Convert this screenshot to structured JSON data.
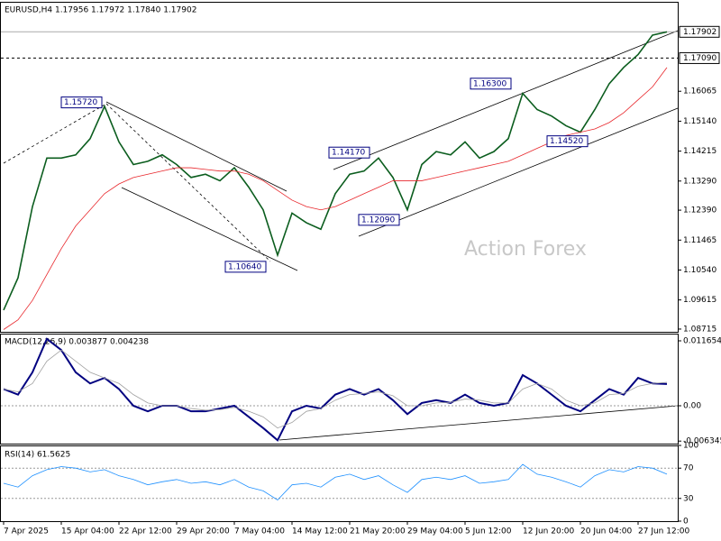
{
  "chart_data": [
    {
      "type": "line",
      "title": "EURUSD,H4  1.17956 1.17972 1.17840 1.17902",
      "watermark": "Action Forex",
      "ylim": [
        1.0863,
        1.1883
      ],
      "yticks": [
        1.16065,
        {
          "value": 1.1514,
          "label": "1.15140"
        },
        1.14215,
        {
          "value": 1.1329,
          "label": "1.13290"
        },
        {
          "value": 1.1239,
          "label": "1.12390"
        },
        1.11465,
        {
          "value": 1.1054,
          "label": "1.10540"
        },
        1.09615,
        1.08715
      ],
      "price_lines": [
        {
          "value": 1.17902,
          "label": "1.17902"
        },
        {
          "value": 1.1709,
          "label": "1.17090"
        }
      ],
      "annotations": [
        {
          "value": 1.1572,
          "label": "1.15720"
        },
        {
          "value": 1.1064,
          "label": "1.10640"
        },
        {
          "value": 1.1417,
          "label": "1.14170"
        },
        {
          "value": 1.1209,
          "label": "1.12090"
        },
        {
          "value": 1.163,
          "label": "1.16300"
        },
        {
          "value": 1.1452,
          "label": "1.14520"
        }
      ],
      "series": [
        {
          "name": "EURUSD",
          "color": "#0b5d1e",
          "values": [
            1.093,
            1.103,
            1.125,
            1.14,
            1.14,
            1.141,
            1.146,
            1.156,
            1.145,
            1.138,
            1.139,
            1.141,
            1.138,
            1.134,
            1.135,
            1.133,
            1.137,
            1.131,
            1.124,
            1.11,
            1.123,
            1.12,
            1.118,
            1.129,
            1.135,
            1.136,
            1.14,
            1.134,
            1.124,
            1.138,
            1.142,
            1.141,
            1.145,
            1.14,
            1.142,
            1.146,
            1.16,
            1.155,
            1.153,
            1.15,
            1.148,
            1.155,
            1.163,
            1.168,
            1.172,
            1.178,
            1.179
          ]
        },
        {
          "name": "MA",
          "color": "#e8262b",
          "values": [
            1.087,
            1.09,
            1.096,
            1.104,
            1.112,
            1.119,
            1.124,
            1.129,
            1.132,
            1.134,
            1.135,
            1.136,
            1.137,
            1.137,
            1.1365,
            1.136,
            1.136,
            1.135,
            1.133,
            1.13,
            1.127,
            1.125,
            1.124,
            1.125,
            1.127,
            1.129,
            1.131,
            1.133,
            1.133,
            1.133,
            1.134,
            1.135,
            1.136,
            1.137,
            1.138,
            1.139,
            1.141,
            1.143,
            1.145,
            1.147,
            1.148,
            1.149,
            1.151,
            1.154,
            1.158,
            1.162,
            1.168
          ]
        }
      ]
    },
    {
      "type": "line",
      "title": "MACD(12,26,9) 0.003877 0.004238",
      "ylim": [
        -0.0068,
        0.01295
      ],
      "yticks": [
        0.011654,
        {
          "value": 0,
          "label": "0.00"
        },
        -0.006345
      ],
      "series": [
        {
          "name": "MACD",
          "color": "#000080",
          "values": [
            0.003,
            0.002,
            0.006,
            0.012,
            0.01,
            0.006,
            0.004,
            0.005,
            0.003,
            0,
            -0.001,
            0,
            0,
            -0.001,
            -0.001,
            -0.0005,
            0,
            -0.002,
            -0.004,
            -0.0062,
            -0.001,
            0,
            -0.0005,
            0.002,
            0.003,
            0.002,
            0.003,
            0.001,
            -0.0015,
            0.0005,
            0.001,
            0.0005,
            0.002,
            0.0005,
            0,
            0.0005,
            0.0055,
            0.004,
            0.002,
            0,
            -0.001,
            0.001,
            0.003,
            0.002,
            0.005,
            0.004,
            0.0039
          ]
        },
        {
          "name": "Signal",
          "color": "#a0a0a0",
          "values": [
            0.003,
            0.0025,
            0.004,
            0.008,
            0.01,
            0.008,
            0.006,
            0.005,
            0.004,
            0.002,
            0.0005,
            0,
            0,
            -0.0005,
            -0.0008,
            -0.0007,
            -0.0003,
            -0.001,
            -0.002,
            -0.004,
            -0.003,
            -0.001,
            -0.0005,
            0.001,
            0.002,
            0.0022,
            0.0025,
            0.0018,
            0,
            0,
            0.0005,
            0.0006,
            0.0012,
            0.001,
            0.0005,
            0.0005,
            0.003,
            0.004,
            0.003,
            0.001,
            0,
            0.0005,
            0.002,
            0.0022,
            0.0035,
            0.004,
            0.0042
          ]
        }
      ]
    },
    {
      "type": "line",
      "title": "RSI(14) 61.5625",
      "ylim": [
        0,
        100
      ],
      "yticks": [
        100,
        70,
        30,
        0
      ],
      "categories": [
        "7 Apr 2025",
        null,
        null,
        null,
        "15 Apr 04:00",
        null,
        null,
        null,
        "22 Apr 12:00",
        null,
        null,
        null,
        "29 Apr 20:00",
        null,
        null,
        null,
        "7 May 04:00",
        null,
        null,
        null,
        "14 May 12:00",
        null,
        null,
        null,
        "21 May 20:00",
        null,
        null,
        null,
        "29 May 04:00",
        null,
        null,
        null,
        "5 Jun 12:00",
        null,
        null,
        null,
        "12 Jun 20:00",
        null,
        null,
        null,
        "20 Jun 04:00",
        null,
        null,
        null,
        "27 Jun 12:00",
        null,
        null
      ],
      "series": [
        {
          "name": "RSI",
          "color": "#1e90ff",
          "values": [
            50,
            45,
            60,
            68,
            72,
            70,
            65,
            68,
            60,
            55,
            48,
            52,
            55,
            50,
            52,
            48,
            55,
            45,
            40,
            28,
            48,
            50,
            45,
            58,
            62,
            55,
            60,
            48,
            38,
            55,
            58,
            55,
            60,
            50,
            52,
            55,
            75,
            62,
            58,
            52,
            45,
            60,
            68,
            65,
            72,
            70,
            62
          ]
        }
      ]
    }
  ]
}
